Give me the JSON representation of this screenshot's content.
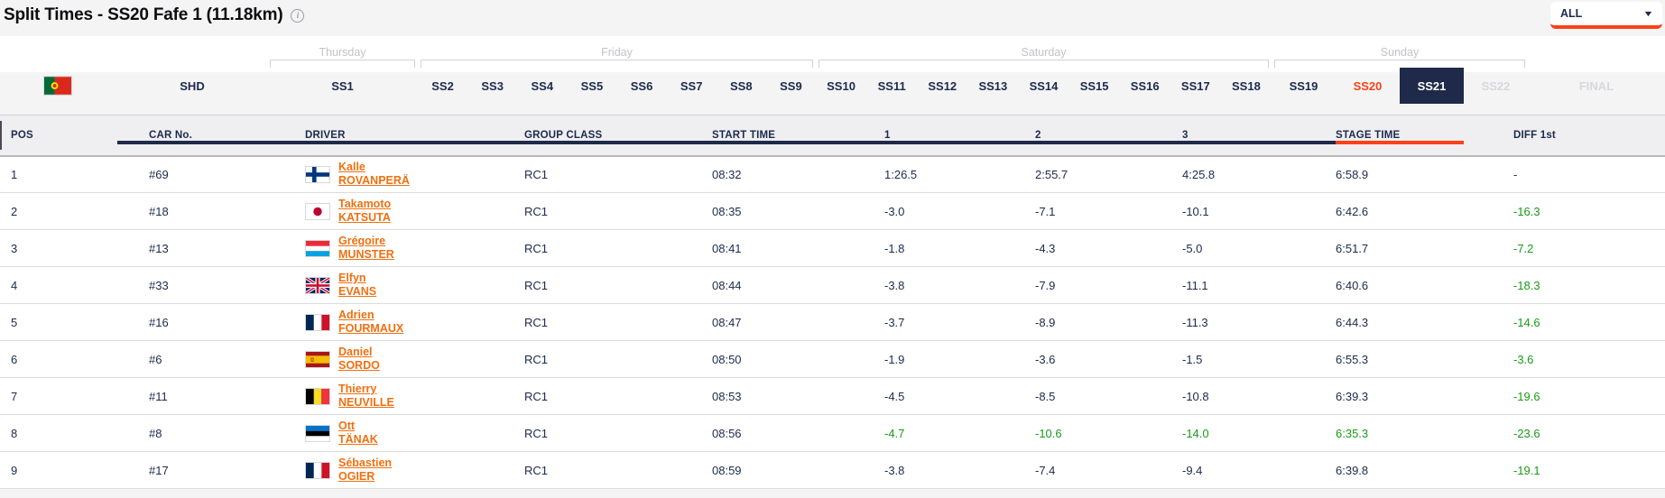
{
  "page": {
    "title": "Split Times - SS20 Fafe 1 (11.18km)",
    "info_icon": "i",
    "filter_value": "ALL",
    "event_flag_country": "pt"
  },
  "colors": {
    "accent_orange": "#fb4118",
    "link_orange": "#ef7011",
    "navy": "#1b2a4d",
    "selected_tab_bg": "#1f2a4a",
    "diff_green": "#189c18"
  },
  "tab_groups": [
    {
      "kind": "flag"
    },
    {
      "day": null,
      "tabs": [
        {
          "label": "SHD",
          "state": "default"
        }
      ]
    },
    {
      "day": "Thursday",
      "tabs": [
        {
          "label": "SS1",
          "state": "default"
        }
      ]
    },
    {
      "day": "Friday",
      "tabs": [
        {
          "label": "SS2",
          "state": "default"
        },
        {
          "label": "SS3",
          "state": "default"
        },
        {
          "label": "SS4",
          "state": "default"
        },
        {
          "label": "SS5",
          "state": "default"
        },
        {
          "label": "SS6",
          "state": "default"
        },
        {
          "label": "SS7",
          "state": "default"
        },
        {
          "label": "SS8",
          "state": "default"
        },
        {
          "label": "SS9",
          "state": "default"
        }
      ]
    },
    {
      "day": "Saturday",
      "tabs": [
        {
          "label": "SS10",
          "state": "default"
        },
        {
          "label": "SS11",
          "state": "default"
        },
        {
          "label": "SS12",
          "state": "default"
        },
        {
          "label": "SS13",
          "state": "default"
        },
        {
          "label": "SS14",
          "state": "default"
        },
        {
          "label": "SS15",
          "state": "default"
        },
        {
          "label": "SS16",
          "state": "default"
        },
        {
          "label": "SS17",
          "state": "default"
        },
        {
          "label": "SS18",
          "state": "default"
        }
      ]
    },
    {
      "day": "Sunday",
      "tabs": [
        {
          "label": "SS19",
          "state": "default"
        },
        {
          "label": "SS20",
          "state": "accent"
        },
        {
          "label": "SS21",
          "state": "selected"
        },
        {
          "label": "SS22",
          "state": "disabled"
        }
      ]
    },
    {
      "day": null,
      "tabs": [
        {
          "label": "FINAL",
          "state": "disabled"
        }
      ]
    }
  ],
  "table": {
    "columns": [
      "POS",
      "CAR No.",
      "DRIVER",
      "GROUP CLASS",
      "START TIME",
      "1",
      "2",
      "3",
      "STAGE TIME",
      "DIFF 1st"
    ],
    "rows": [
      {
        "pos": "1",
        "car": "#69",
        "country": "fi",
        "first": "Kalle",
        "last": "ROVANPERÄ",
        "group": "RC1",
        "start": "08:32",
        "s1": "1:26.5",
        "s2": "2:55.7",
        "s3": "4:25.8",
        "stage": "6:58.9",
        "diff": "-",
        "best": false,
        "diff_green": false
      },
      {
        "pos": "2",
        "car": "#18",
        "country": "jp",
        "first": "Takamoto",
        "last": "KATSUTA",
        "group": "RC1",
        "start": "08:35",
        "s1": "-3.0",
        "s2": "-7.1",
        "s3": "-10.1",
        "stage": "6:42.6",
        "diff": "-16.3",
        "best": false,
        "diff_green": true
      },
      {
        "pos": "3",
        "car": "#13",
        "country": "lu",
        "first": "Grégoire",
        "last": "MUNSTER",
        "group": "RC1",
        "start": "08:41",
        "s1": "-1.8",
        "s2": "-4.3",
        "s3": "-5.0",
        "stage": "6:51.7",
        "diff": "-7.2",
        "best": false,
        "diff_green": true
      },
      {
        "pos": "4",
        "car": "#33",
        "country": "gb",
        "first": "Elfyn",
        "last": "EVANS",
        "group": "RC1",
        "start": "08:44",
        "s1": "-3.8",
        "s2": "-7.9",
        "s3": "-11.1",
        "stage": "6:40.6",
        "diff": "-18.3",
        "best": false,
        "diff_green": true
      },
      {
        "pos": "5",
        "car": "#16",
        "country": "fr",
        "first": "Adrien",
        "last": "FOURMAUX",
        "group": "RC1",
        "start": "08:47",
        "s1": "-3.7",
        "s2": "-8.9",
        "s3": "-11.3",
        "stage": "6:44.3",
        "diff": "-14.6",
        "best": false,
        "diff_green": true
      },
      {
        "pos": "6",
        "car": "#6",
        "country": "es",
        "first": "Daniel",
        "last": "SORDO",
        "group": "RC1",
        "start": "08:50",
        "s1": "-1.9",
        "s2": "-3.6",
        "s3": "-1.5",
        "stage": "6:55.3",
        "diff": "-3.6",
        "best": false,
        "diff_green": true
      },
      {
        "pos": "7",
        "car": "#11",
        "country": "be",
        "first": "Thierry",
        "last": "NEUVILLE",
        "group": "RC1",
        "start": "08:53",
        "s1": "-4.5",
        "s2": "-8.5",
        "s3": "-10.8",
        "stage": "6:39.3",
        "diff": "-19.6",
        "best": false,
        "diff_green": true
      },
      {
        "pos": "8",
        "car": "#8",
        "country": "ee",
        "first": "Ott",
        "last": "TÄNAK",
        "group": "RC1",
        "start": "08:56",
        "s1": "-4.7",
        "s2": "-10.6",
        "s3": "-14.0",
        "stage": "6:35.3",
        "diff": "-23.6",
        "best": true,
        "diff_green": true
      },
      {
        "pos": "9",
        "car": "#17",
        "country": "fr",
        "first": "Sébastien",
        "last": "OGIER",
        "group": "RC1",
        "start": "08:59",
        "s1": "-3.8",
        "s2": "-7.4",
        "s3": "-9.4",
        "stage": "6:39.8",
        "diff": "-19.1",
        "best": false,
        "diff_green": true
      }
    ]
  }
}
